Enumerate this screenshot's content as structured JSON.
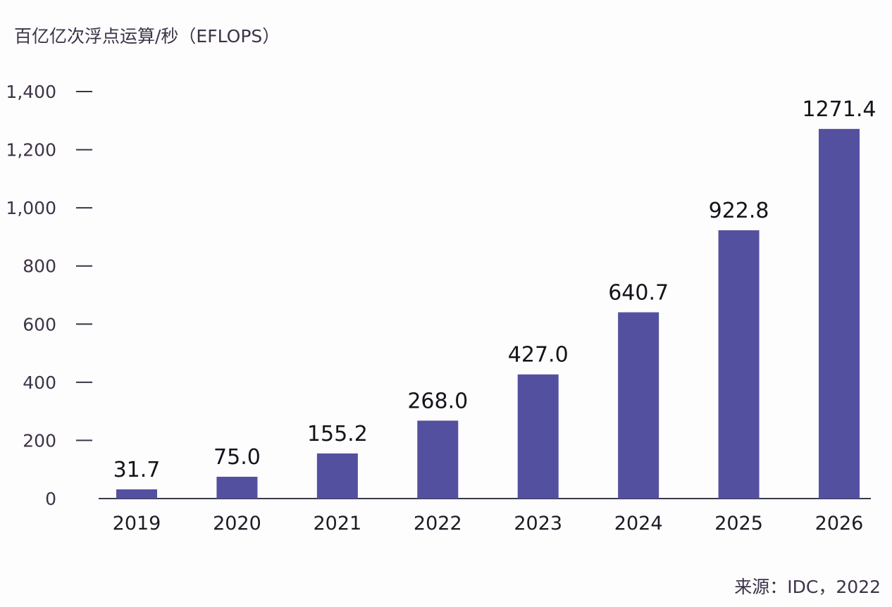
{
  "chart_data": {
    "type": "bar",
    "title": "",
    "ylabel": "百亿亿次浮点运算/秒（EFLOPS）",
    "xlabel": "",
    "categories": [
      "2019",
      "2020",
      "2021",
      "2022",
      "2023",
      "2024",
      "2025",
      "2026"
    ],
    "values": [
      31.7,
      75.0,
      155.2,
      268.0,
      427.0,
      640.7,
      922.8,
      1271.4
    ],
    "data_labels": [
      "31.7",
      "75.0",
      "155.2",
      "268.0",
      "427.0",
      "640.7",
      "922.8",
      "1271.4"
    ],
    "ylim": [
      0,
      1400
    ],
    "yticks": [
      0,
      200,
      400,
      600,
      800,
      1000,
      1200,
      1400
    ],
    "ytick_labels": [
      "0",
      "200",
      "400",
      "600",
      "800",
      "1,000",
      "1,200",
      "1,400"
    ],
    "grid": false,
    "bar_color": "#5450a0",
    "source": "来源：IDC，2022"
  }
}
